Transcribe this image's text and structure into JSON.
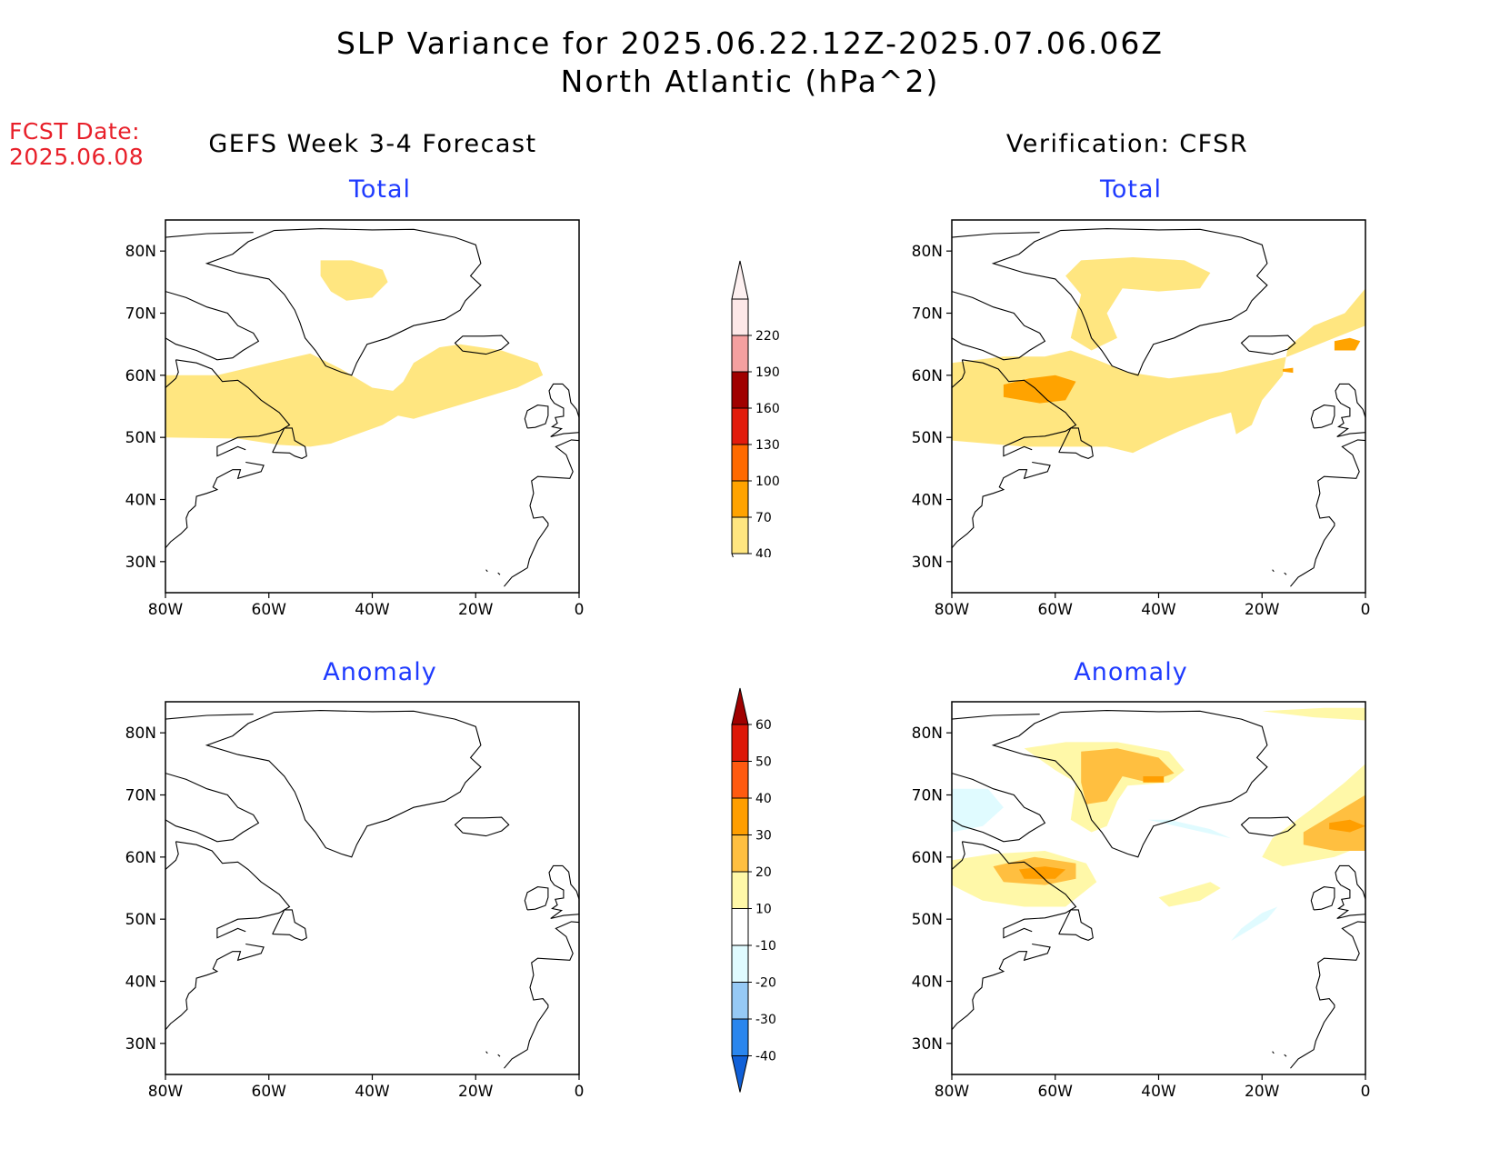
{
  "title": {
    "line1": "SLP Variance for 2025.06.22.12Z-2025.07.06.06Z",
    "line2": "North Atlantic (hPa^2)"
  },
  "fcst": {
    "label": "FCST Date:",
    "date": "2025.06.08"
  },
  "columns": {
    "left": "GEFS Week 3-4 Forecast",
    "right": "Verification: CFSR"
  },
  "panel_titles": {
    "top_left": "Total",
    "top_right": "Total",
    "bottom_left": "Anomaly",
    "bottom_right": "Anomaly"
  },
  "map": {
    "lat_ticks": [
      "80N",
      "70N",
      "60N",
      "50N",
      "40N",
      "30N"
    ],
    "lon_ticks": [
      "80W",
      "60W",
      "40W",
      "20W",
      "0"
    ],
    "lat_values": [
      80,
      70,
      60,
      50,
      40,
      30
    ],
    "lon_values": [
      -80,
      -60,
      -40,
      -20,
      0
    ],
    "lat_range": [
      25,
      85
    ],
    "lon_range": [
      -80,
      0
    ]
  },
  "colorbars": {
    "total": {
      "labels": [
        "40",
        "70",
        "100",
        "130",
        "160",
        "190",
        "220"
      ],
      "colors": [
        "#ffe680",
        "#ffa300",
        "#ff6a00",
        "#e21b0c",
        "#a00000",
        "#f4a0a0",
        "#fde8e8"
      ]
    },
    "anomaly": {
      "labels": [
        "-40",
        "-30",
        "-20",
        "-10",
        "10",
        "20",
        "30",
        "40",
        "50",
        "60"
      ],
      "colors": [
        "#1060d8",
        "#2a86ee",
        "#96c9f5",
        "#e0fbff",
        "#ffffff",
        "#fff8a8",
        "#ffbf40",
        "#ff9e00",
        "#ff5a10",
        "#dd1808",
        "#a00000"
      ]
    }
  }
}
